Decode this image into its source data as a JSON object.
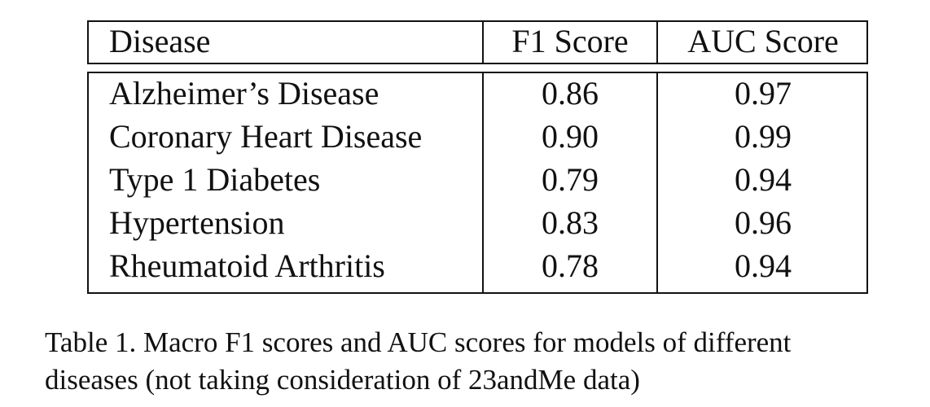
{
  "table": {
    "headers": [
      "Disease",
      "F1 Score",
      "AUC Score"
    ],
    "rows": [
      {
        "disease": "Alzheimer’s Disease",
        "f1": "0.86",
        "auc": "0.97"
      },
      {
        "disease": "Coronary Heart Disease",
        "f1": "0.90",
        "auc": "0.99"
      },
      {
        "disease": "Type 1 Diabetes",
        "f1": "0.79",
        "auc": "0.94"
      },
      {
        "disease": "Hypertension",
        "f1": "0.83",
        "auc": "0.96"
      },
      {
        "disease": "Rheumatoid Arthritis",
        "f1": "0.78",
        "auc": "0.94"
      }
    ]
  },
  "caption": {
    "line1": "Table 1. Macro F1 scores and AUC scores for models of different",
    "line2": "diseases (not taking consideration of 23andMe data)"
  }
}
